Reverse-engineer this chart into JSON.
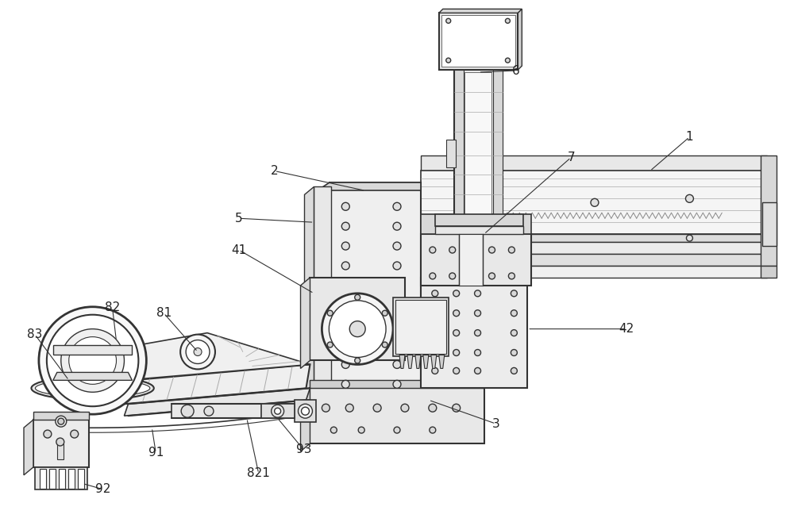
{
  "bg_color": "#ffffff",
  "line_color": "#333333",
  "label_color": "#222222",
  "fig_width": 10.0,
  "fig_height": 6.58,
  "dpi": 100
}
